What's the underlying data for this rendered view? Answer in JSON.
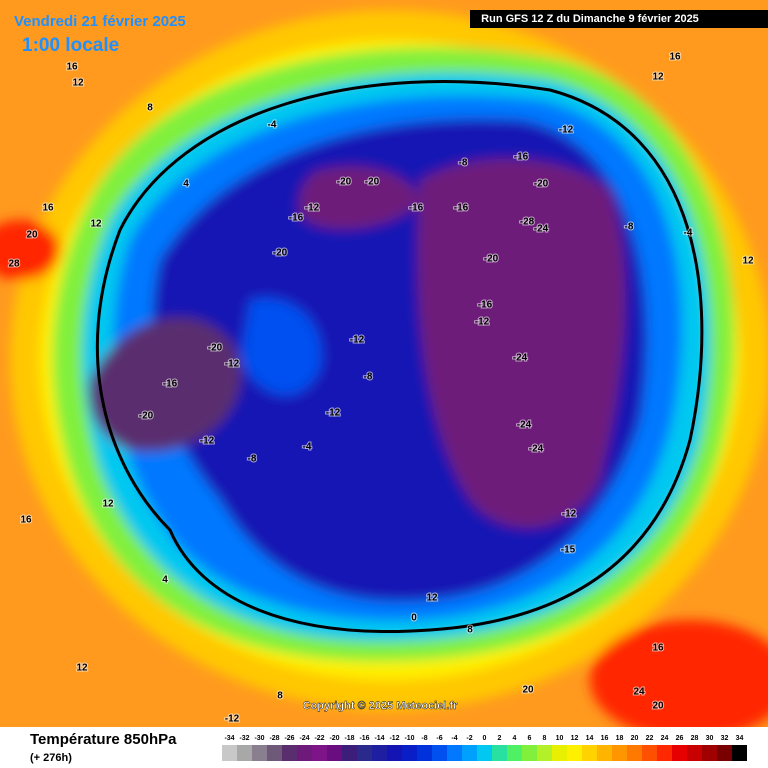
{
  "header": {
    "date": "Vendredi 21 février 2025",
    "time": "1:00 locale",
    "run": "Run GFS 12 Z du Dimanche 9 février 2025",
    "copyright": "Copyright © 2025 Meteociel.fr"
  },
  "footer": {
    "title": "Température 850hPa",
    "lead": "(+ 276h)"
  },
  "scale": {
    "values": [
      -34,
      -32,
      -30,
      -28,
      -26,
      -24,
      -22,
      -20,
      -18,
      -16,
      -14,
      -12,
      -10,
      -8,
      -6,
      -4,
      -2,
      0,
      2,
      4,
      6,
      8,
      10,
      12,
      14,
      16,
      18,
      20,
      22,
      24,
      26,
      28,
      30,
      32,
      34
    ],
    "colors": [
      "#c8c8c8",
      "#a8a8a8",
      "#8a7f8f",
      "#6e5a78",
      "#5a2d6e",
      "#6e1a7a",
      "#7d1487",
      "#6a0d80",
      "#3c1e7a",
      "#2a2a8c",
      "#1e1ea0",
      "#1414b4",
      "#0a1ec8",
      "#0032dc",
      "#0050f0",
      "#0078ff",
      "#00a0ff",
      "#00c8f0",
      "#28e0a0",
      "#50f064",
      "#80f03c",
      "#b4f028",
      "#e6f000",
      "#fff000",
      "#ffd200",
      "#ffb400",
      "#ff9600",
      "#ff7800",
      "#ff5000",
      "#ff2800",
      "#e60000",
      "#c80000",
      "#a00000",
      "#780000",
      "#000000"
    ]
  },
  "contour_labels": [
    16,
    12,
    8,
    -4,
    -20,
    -20,
    -16,
    -20,
    -12,
    -16,
    -8,
    -12,
    -16,
    -20,
    -16,
    -28,
    -24,
    -20,
    -16,
    -12,
    -24,
    -24,
    -24,
    -20,
    -16,
    -20,
    -12,
    -12,
    -12,
    -8,
    -12,
    -8,
    -4,
    -12,
    -15,
    12,
    8,
    0,
    -4,
    12,
    20,
    28,
    16,
    12,
    4,
    12,
    8,
    -12,
    16,
    20,
    24,
    20,
    16,
    12,
    4,
    12,
    16,
    -8
  ]
}
